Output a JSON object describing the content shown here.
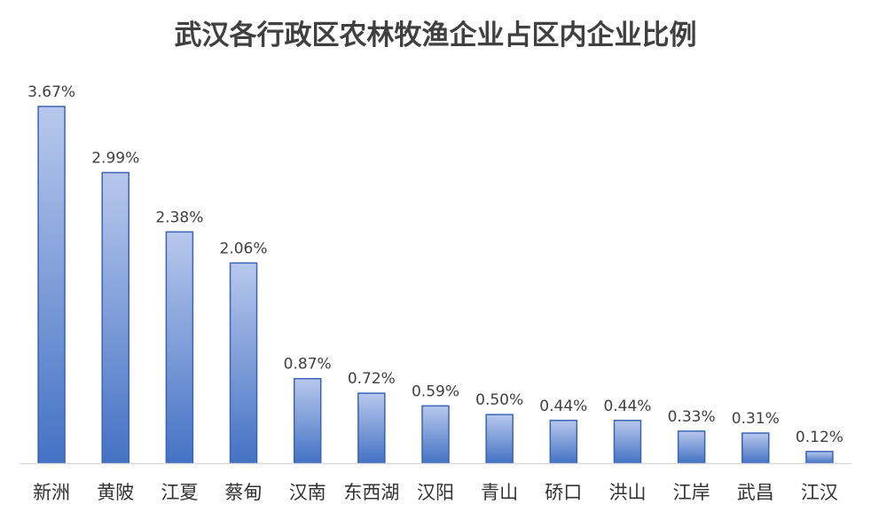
{
  "chart_data": {
    "type": "bar",
    "title": "武汉各行政区农林牧渔企业占区内企业比例",
    "categories": [
      "新洲",
      "黄陂",
      "江夏",
      "蔡甸",
      "汉南",
      "东西湖",
      "汉阳",
      "青山",
      "硚口",
      "洪山",
      "江岸",
      "武昌",
      "江汉"
    ],
    "values": [
      3.67,
      2.99,
      2.38,
      2.06,
      0.87,
      0.72,
      0.59,
      0.5,
      0.44,
      0.44,
      0.33,
      0.31,
      0.12
    ],
    "value_labels": [
      "3.67%",
      "2.99%",
      "2.38%",
      "2.06%",
      "0.87%",
      "0.72%",
      "0.59%",
      "0.50%",
      "0.44%",
      "0.44%",
      "0.33%",
      "0.31%",
      "0.12%"
    ],
    "unit": "%",
    "ylim": [
      0,
      3.67
    ],
    "grid": false,
    "legend": "none",
    "colors": {
      "bar_top": "#b8c8ec",
      "bar_bottom": "#4472c4",
      "bar_stroke": "#3a64b8",
      "axis": "#d9d9d9"
    }
  }
}
